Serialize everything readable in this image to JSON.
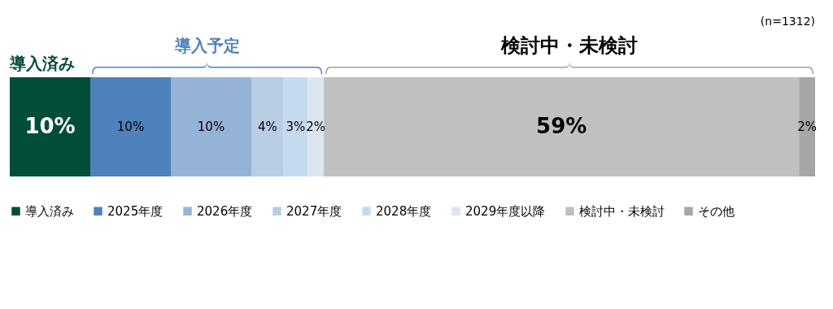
{
  "chart_data": {
    "type": "bar",
    "orientation": "horizontal",
    "stacked": true,
    "categories": [
      null
    ],
    "tick_labels": false,
    "legend": "bottom",
    "annotations": [
      "(n=1312)",
      "導入済み",
      "導入予定",
      "検討中・未検討"
    ],
    "series": [
      {
        "name": "導入済み",
        "color": "#004d3a",
        "values": [
          10
        ],
        "value_labels": [
          "10%"
        ]
      },
      {
        "name": "2025年度",
        "color": "#4f81bd",
        "values": [
          10
        ],
        "value_labels": [
          "10%"
        ]
      },
      {
        "name": "2026年度",
        "color": "#95b3d7",
        "values": [
          10
        ],
        "value_labels": [
          "10%"
        ]
      },
      {
        "name": "2027年度",
        "color": "#b8cce4",
        "values": [
          4
        ],
        "value_labels": [
          "4%"
        ]
      },
      {
        "name": "2028年度",
        "color": "#c5d9f1",
        "values": [
          3
        ],
        "value_labels": [
          "3%"
        ]
      },
      {
        "name": "2029年度以降",
        "color": "#dce6f1",
        "values": [
          2
        ],
        "value_labels": [
          "2%"
        ]
      },
      {
        "name": "検討中・未検討",
        "color": "#c0c0c0",
        "values": [
          59
        ],
        "value_labels": [
          "59%"
        ]
      },
      {
        "name": "その他",
        "color": "#a6a6a6",
        "values": [
          2
        ],
        "value_labels": [
          "2%"
        ]
      }
    ]
  }
}
